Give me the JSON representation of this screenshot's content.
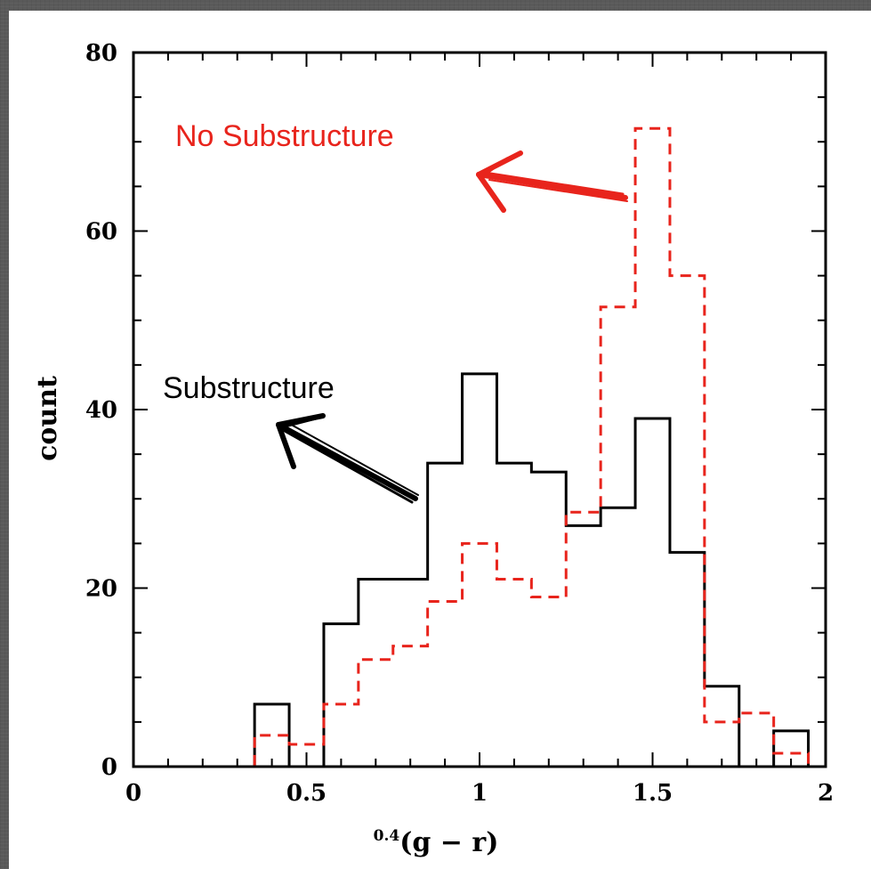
{
  "chart_data": {
    "type": "bar",
    "subtype": "step histogram",
    "xlabel_superscript": "0.4",
    "xlabel_main": "(g − r)",
    "ylabel": "count",
    "xlim": [
      0,
      2
    ],
    "ylim": [
      0,
      80
    ],
    "xticks": [
      0,
      0.5,
      1,
      1.5,
      2
    ],
    "xtick_labels": [
      "0",
      "0.5",
      "1",
      "1.5",
      "2"
    ],
    "yticks": [
      0,
      20,
      40,
      60,
      80
    ],
    "ytick_labels": [
      "0",
      "20",
      "40",
      "60",
      "80"
    ],
    "bin_edges": [
      0.25,
      0.35,
      0.45,
      0.55,
      0.65,
      0.75,
      0.85,
      0.95,
      1.05,
      1.15,
      1.25,
      1.35,
      1.45,
      1.55,
      1.65,
      1.75,
      1.85,
      1.95
    ],
    "series": [
      {
        "name": "Substructure",
        "color": "#000000",
        "style": "solid",
        "values": [
          0,
          7,
          0,
          16,
          21,
          21,
          34,
          44,
          34,
          33,
          27,
          29,
          39,
          24,
          9,
          0,
          4
        ]
      },
      {
        "name": "No Substructure",
        "color": "#e8241c",
        "style": "dashed",
        "values": [
          0,
          3.5,
          2.5,
          7,
          12,
          13.5,
          18.5,
          25,
          21,
          19,
          28.5,
          51.5,
          71.5,
          55,
          5,
          6,
          1.5
        ]
      }
    ],
    "annotations": [
      {
        "text": "No Substructure",
        "color": "#e8241c"
      },
      {
        "text": "Substructure",
        "color": "#000000"
      }
    ]
  }
}
